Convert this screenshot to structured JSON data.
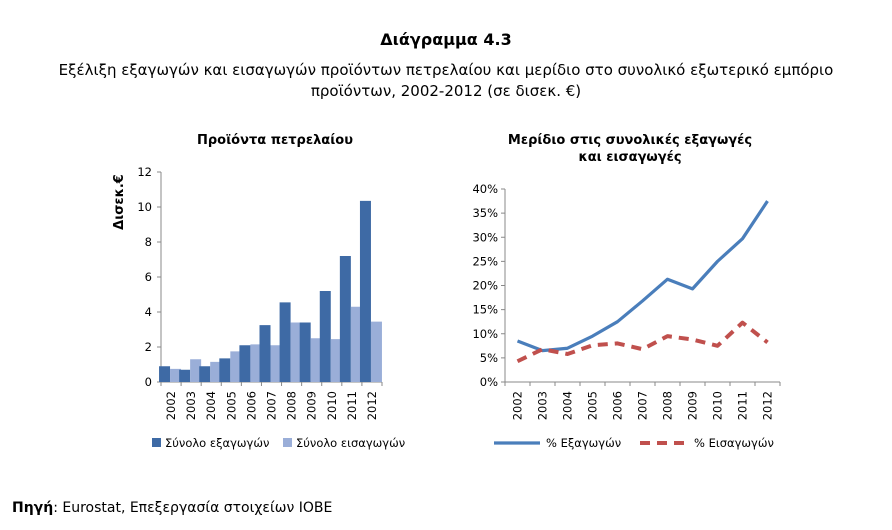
{
  "title": "Διάγραμμα 4.3",
  "subtitle_lines": [
    "Εξέλιξη εξαγωγών και εισαγωγών προϊόντων πετρελαίου και μερίδιο στο συνολικό εξωτερικό εμπόριο",
    "προϊόντων, 2002-2012 (σε δισεκ. €)"
  ],
  "source": {
    "label": "Πηγή",
    "text": ": Eurostat, Επεξεργασία στοιχείων ΙΟΒΕ"
  },
  "colors": {
    "exports": "#3e6aa5",
    "imports": "#9aaed8",
    "exports_line": "#4a7ebb",
    "imports_line": "#c0504d"
  },
  "chart_data": [
    {
      "type": "bar",
      "title": "Προϊόντα πετρελαίου",
      "ylabel": "Δισεκ.€",
      "ylim": [
        0,
        12
      ],
      "yticks": [
        "0",
        "2",
        "4",
        "6",
        "8",
        "10",
        "12"
      ],
      "categories": [
        "2002",
        "2003",
        "2004",
        "2005",
        "2006",
        "2007",
        "2008",
        "2009",
        "2010",
        "2011",
        "2012"
      ],
      "series": [
        {
          "name": "Σύνολο εξαγωγών",
          "values": [
            0.9,
            0.7,
            0.9,
            1.35,
            2.1,
            3.25,
            4.55,
            3.4,
            5.2,
            7.2,
            10.35
          ]
        },
        {
          "name": "Σύνολο εισαγωγών",
          "values": [
            0.75,
            1.3,
            1.15,
            1.75,
            2.15,
            2.1,
            3.4,
            2.5,
            2.45,
            4.3,
            3.45
          ]
        }
      ],
      "grid": false,
      "legend": "bottom"
    },
    {
      "type": "line",
      "title_lines": [
        "Μερίδιο στις συνολικές εξαγωγές",
        "και εισαγωγές"
      ],
      "ylim": [
        0,
        40
      ],
      "yticks": [
        "0%",
        "5%",
        "10%",
        "15%",
        "20%",
        "25%",
        "30%",
        "35%",
        "40%"
      ],
      "categories": [
        "2002",
        "2003",
        "2004",
        "2005",
        "2006",
        "2007",
        "2008",
        "2009",
        "2010",
        "2011",
        "2012"
      ],
      "series": [
        {
          "name": "% Εξαγωγών",
          "values": [
            8.5,
            6.5,
            7.0,
            9.5,
            12.5,
            16.8,
            21.3,
            19.3,
            25.0,
            29.7,
            37.5
          ]
        },
        {
          "name": "% Εισαγωγών",
          "values": [
            4.3,
            6.8,
            5.8,
            7.6,
            8.0,
            6.8,
            9.5,
            8.8,
            7.5,
            12.3,
            8.2
          ]
        }
      ],
      "grid": false,
      "legend": "bottom"
    }
  ]
}
